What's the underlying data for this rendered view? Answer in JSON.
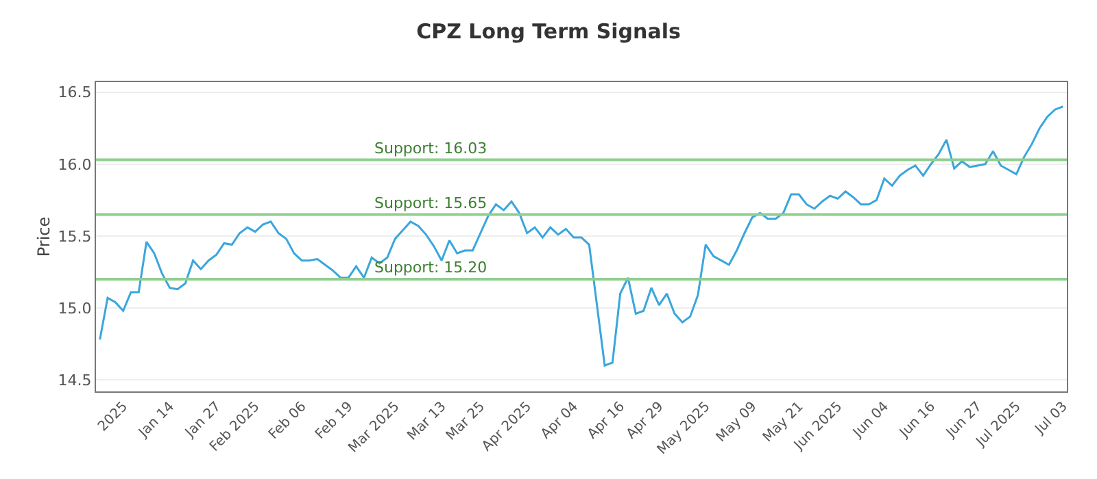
{
  "chart_data": {
    "type": "line",
    "title": "CPZ Long Term Signals",
    "ylabel": "Price",
    "categories": [
      null,
      null,
      null,
      "2025",
      null,
      null,
      null,
      null,
      null,
      "Jan 14",
      null,
      null,
      null,
      null,
      null,
      "Jan 27",
      null,
      null,
      null,
      null,
      "Feb 2025",
      null,
      null,
      null,
      null,
      null,
      "Feb 06",
      null,
      null,
      null,
      null,
      null,
      "Feb 19",
      null,
      null,
      null,
      null,
      null,
      "Mar 2025",
      null,
      null,
      null,
      null,
      null,
      "Mar 13",
      null,
      null,
      null,
      null,
      "Mar 25",
      null,
      null,
      null,
      null,
      null,
      "Apr 2025",
      null,
      null,
      null,
      null,
      null,
      "Apr 04",
      null,
      null,
      null,
      null,
      null,
      "Apr 16",
      null,
      null,
      null,
      null,
      "Apr 29",
      null,
      null,
      null,
      null,
      null,
      "May 2025",
      null,
      null,
      null,
      null,
      null,
      "May 09",
      null,
      null,
      null,
      null,
      null,
      "May 21",
      null,
      null,
      null,
      null,
      "Jun 2025",
      null,
      null,
      null,
      null,
      null,
      "Jun 04",
      null,
      null,
      null,
      null,
      null,
      "Jun 16",
      null,
      null,
      null,
      null,
      null,
      "Jun 27",
      null,
      null,
      null,
      null,
      "Jul 2025",
      null,
      null,
      null,
      null,
      null,
      "Jul 03"
    ],
    "series": [
      {
        "color": "#3aa6dd",
        "values": [
          14.78,
          15.07,
          15.04,
          14.98,
          15.11,
          15.11,
          15.46,
          15.38,
          15.24,
          15.14,
          15.13,
          15.17,
          15.33,
          15.27,
          15.33,
          15.37,
          15.45,
          15.44,
          15.52,
          15.56,
          15.53,
          15.58,
          15.6,
          15.52,
          15.48,
          15.38,
          15.33,
          15.33,
          15.34,
          15.3,
          15.26,
          15.21,
          15.21,
          15.29,
          15.21,
          15.35,
          15.31,
          15.35,
          15.48,
          15.54,
          15.6,
          15.57,
          15.51,
          15.43,
          15.33,
          15.47,
          15.38,
          15.4,
          15.4,
          15.52,
          15.64,
          15.72,
          15.68,
          15.74,
          15.66,
          15.52,
          15.56,
          15.49,
          15.56,
          15.51,
          15.55,
          15.49,
          15.49,
          15.44,
          15.02,
          14.6,
          14.62,
          15.1,
          15.21,
          14.96,
          14.98,
          15.14,
          15.02,
          15.1,
          14.96,
          14.9,
          14.94,
          15.09,
          15.44,
          15.36,
          15.33,
          15.3,
          15.4,
          15.52,
          15.63,
          15.66,
          15.62,
          15.62,
          15.66,
          15.79,
          15.79,
          15.72,
          15.69,
          15.74,
          15.78,
          15.76,
          15.81,
          15.77,
          15.72,
          15.72,
          15.75,
          15.9,
          15.85,
          15.92,
          15.96,
          15.99,
          15.92,
          16.0,
          16.07,
          16.17,
          15.97,
          16.02,
          15.98,
          15.99,
          16.0,
          16.09,
          15.99,
          15.96,
          15.93,
          16.05,
          16.14,
          16.25,
          16.33,
          16.38,
          16.4
        ]
      }
    ],
    "ylim": [
      14.42,
      16.57
    ],
    "yticks": [
      14.5,
      {
        "value": 15,
        "label": "15.0"
      },
      15.5,
      {
        "value": 16,
        "label": "16.0"
      },
      16.5
    ],
    "grid": "y",
    "marker": "none",
    "line_style": "solid",
    "ref_lines": [
      {
        "axis": "y",
        "value": 16.03,
        "label": "Support: 16.03",
        "color": "#8fce8f"
      },
      {
        "axis": "y",
        "value": 15.65,
        "label": "Support: 15.65",
        "color": "#8fce8f"
      },
      {
        "axis": "y",
        "value": 15.2,
        "label": "Support: 15.20",
        "color": "#8fce8f"
      }
    ]
  }
}
